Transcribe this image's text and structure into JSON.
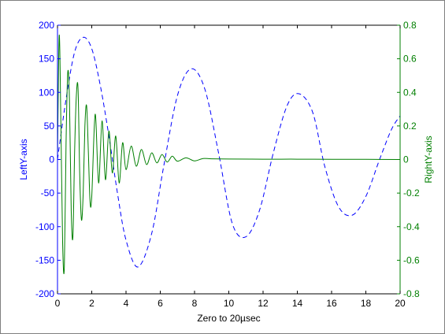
{
  "chart_data": {
    "type": "line",
    "xlabel": "Zero to 20µsec",
    "ylabel_left": "LeftY-axis",
    "ylabel_right": "RightY-axis",
    "xlim": [
      0,
      20
    ],
    "ylim_left": [
      -200,
      200
    ],
    "ylim_right": [
      -0.8,
      0.8
    ],
    "x_ticks": [
      "0",
      "2",
      "4",
      "6",
      "8",
      "10",
      "12",
      "14",
      "16",
      "18",
      "20"
    ],
    "y_ticks_left": [
      "200",
      "150",
      "100",
      "50",
      "0",
      "-50",
      "-100",
      "-150",
      "-200"
    ],
    "y_ticks_right": [
      "0.8",
      "0.6",
      "0.4",
      "0.2",
      "0",
      "-0.2",
      "-0.4",
      "-0.6",
      "-0.8"
    ],
    "grid": false,
    "colors": {
      "left_axis": "#0000ff",
      "right_axis": "#007f00",
      "series_left": "#0000ff",
      "series_right": "#007f00",
      "box": "#000000"
    },
    "series": [
      {
        "axis": "left",
        "style": "dashed",
        "x": [
          0,
          0.5,
          1.0,
          1.5,
          2.0,
          2.5,
          3.0,
          3.5,
          4.0,
          4.7,
          5.5,
          6.2,
          7.0,
          7.8,
          8.6,
          9.4,
          10.2,
          11.0,
          11.8,
          12.6,
          13.4,
          14.1,
          14.9,
          15.6,
          16.4,
          17.2,
          18.0,
          18.8,
          19.5,
          20.0
        ],
        "y": [
          0,
          90,
          160,
          182,
          165,
          110,
          35,
          -50,
          -120,
          -160,
          -110,
          -10,
          95,
          135,
          105,
          10,
          -95,
          -115,
          -75,
          10,
          80,
          98,
          70,
          -10,
          -70,
          -83,
          -55,
          0,
          45,
          65
        ]
      },
      {
        "axis": "right",
        "style": "solid",
        "x": [
          0,
          0.1,
          0.2,
          0.3,
          0.4,
          0.5,
          0.6,
          0.7,
          0.8,
          0.9,
          1.0,
          1.1,
          1.2,
          1.3,
          1.4,
          1.5,
          1.6,
          1.7,
          1.8,
          1.9,
          2.0,
          2.2,
          2.4,
          2.6,
          2.8,
          3.0,
          3.2,
          3.4,
          3.6,
          3.8,
          4.0,
          4.3,
          4.6,
          4.9,
          5.2,
          5.5,
          5.8,
          6.1,
          6.4,
          6.7,
          7.0,
          7.5,
          8.0,
          8.5,
          9.0,
          10.0,
          12.0,
          14.0,
          16.0,
          18.0,
          20.0
        ],
        "y": [
          0,
          0.74,
          0.2,
          -0.5,
          -0.64,
          0.1,
          0.52,
          0.35,
          -0.3,
          -0.46,
          0.05,
          0.38,
          0.42,
          -0.1,
          -0.36,
          -0.2,
          0.2,
          0.32,
          0.05,
          -0.25,
          -0.22,
          0.27,
          -0.14,
          0.23,
          -0.12,
          0.17,
          -0.08,
          0.14,
          -0.14,
          0.1,
          -0.06,
          0.08,
          -0.04,
          0.06,
          -0.03,
          0.04,
          -0.02,
          0.03,
          -0.015,
          0.02,
          -0.01,
          0.01,
          -0.008,
          0.006,
          0.004,
          0.003,
          0.002,
          0.002,
          0.001,
          0.001,
          0
        ]
      }
    ]
  }
}
